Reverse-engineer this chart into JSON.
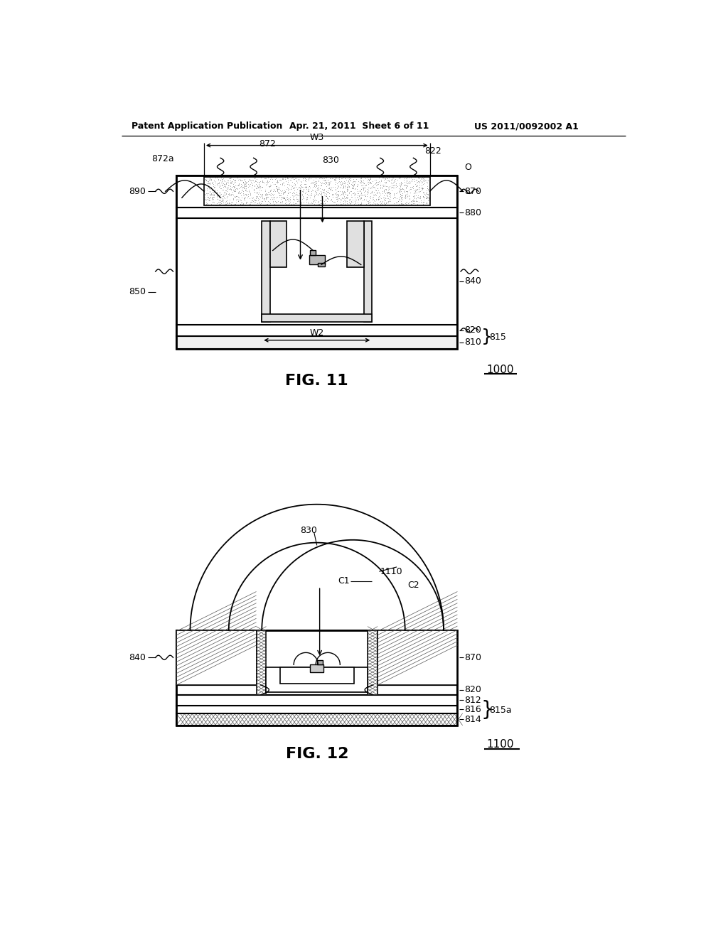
{
  "header_left": "Patent Application Publication",
  "header_center": "Apr. 21, 2011  Sheet 6 of 11",
  "header_right": "US 2011/0092002 A1",
  "fig11_label": "FIG. 11",
  "fig11_number": "1000",
  "fig12_label": "FIG. 12",
  "fig12_number": "1100",
  "bg_color": "#ffffff"
}
